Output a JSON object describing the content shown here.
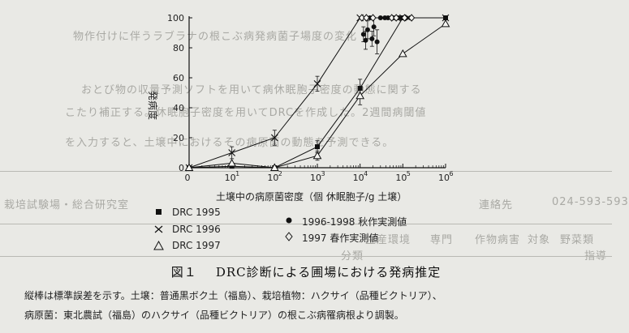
{
  "background_text": [
    "物作付けに伴うラブラナの根こぶ病発病菌子場度の変化",
    "おとび物の収量予測ソフトを用いて病休眠胞子密度の動態に関する",
    "こたり補正する。休眠胞子密度を用いてDRCを作成した。2週間病閾値",
    "を入力すると、土壌中におけるその病原菌の動態を予測できる。",
    "栽培試験場・総合研究室",
    "連絡先",
    "024-593-593",
    "生産環境",
    "専門",
    "作物病害",
    "対象",
    "野菜類",
    "分類",
    "指導"
  ],
  "chart_data": {
    "type": "scatter",
    "title": "",
    "xlabel": "土壌中の病原菌密度（個 休眠胞子/g 土壌）",
    "ylabel": "発病度",
    "x_scale": "log",
    "xlim": [
      1,
      1000000
    ],
    "ylim": [
      0,
      100
    ],
    "x_ticks": [
      "0",
      "10",
      "10",
      "10",
      "10",
      "10",
      "10"
    ],
    "x_tick_exponents": [
      "",
      "1",
      "2",
      "3",
      "4",
      "5",
      "6"
    ],
    "x_tick_values": [
      1,
      10,
      100,
      1000,
      10000,
      100000,
      1000000
    ],
    "y_ticks": [
      0,
      20,
      40,
      60,
      80,
      100
    ],
    "grid": false,
    "series": [
      {
        "name": "DRC 1995",
        "marker": "filled-square",
        "x": [
          1,
          10,
          100,
          1000,
          10000,
          100000,
          1000000
        ],
        "y": [
          0,
          1,
          0,
          14,
          53,
          100,
          100
        ],
        "err": [
          0,
          0,
          0,
          4,
          6,
          0,
          0
        ]
      },
      {
        "name": "DRC 1996",
        "marker": "cross",
        "x": [
          1,
          10,
          100,
          1000,
          10000,
          100000,
          1000000
        ],
        "y": [
          0,
          10,
          20,
          56,
          100,
          100,
          100
        ],
        "err": [
          0,
          4,
          5,
          5,
          0,
          0,
          0
        ]
      },
      {
        "name": "DRC 1997",
        "marker": "open-triangle",
        "x": [
          1,
          10,
          100,
          1000,
          10000,
          100000,
          1000000
        ],
        "y": [
          0,
          3,
          0,
          8,
          48,
          76,
          96
        ],
        "err": [
          0,
          0,
          0,
          3,
          6,
          0,
          0
        ]
      },
      {
        "name": "1996-1998 秋作実測値",
        "marker": "filled-circle",
        "x": [
          12000,
          13500,
          15000,
          17000,
          19000,
          21000,
          25000,
          30000,
          38000,
          45000,
          60000,
          80000,
          100000,
          120000,
          150000
        ],
        "y": [
          89,
          85,
          92,
          100,
          86,
          94,
          84,
          100,
          100,
          100,
          100,
          100,
          100,
          100,
          100
        ],
        "err": [
          5,
          6,
          6,
          0,
          5,
          6,
          8,
          0,
          0,
          0,
          0,
          0,
          0,
          0,
          0
        ]
      },
      {
        "name": "1997 春作実測値",
        "marker": "open-diamond",
        "x": [
          11000,
          14000,
          20000,
          55000,
          70000,
          110000,
          160000
        ],
        "y": [
          100,
          100,
          100,
          100,
          100,
          100,
          100
        ],
        "err": [
          0,
          0,
          0,
          0,
          0,
          0,
          0
        ]
      }
    ],
    "legend": [
      "DRC 1995",
      "DRC 1996",
      "DRC 1997",
      "1996-1998 秋作実測値",
      "1997 春作実測値"
    ]
  },
  "caption": {
    "figure_label": "図１",
    "title": "DRC診断による圃場における発病推定"
  },
  "notes": [
    "縦棒は標準誤差を示す。土壌：普通黒ボク土（福島）、栽培植物：ハクサイ（品種ビクトリア）、",
    "病原菌：東北農試（福島）のハクサイ（品種ビクトリア）の根こぶ病罹病根より調製。"
  ]
}
